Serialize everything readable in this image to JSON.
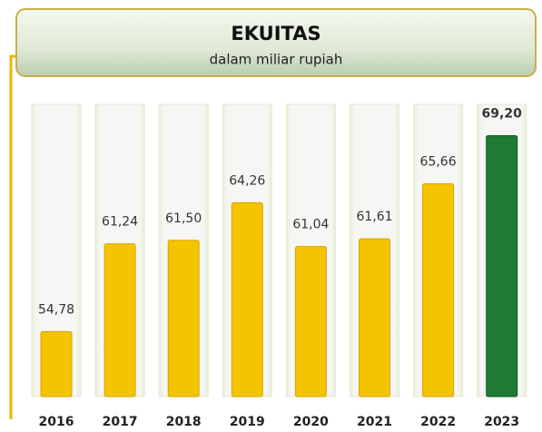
{
  "chart_data": {
    "type": "bar",
    "title": "EKUITAS",
    "subtitle": "dalam miliar rupiah",
    "categories": [
      "2016",
      "2017",
      "2018",
      "2019",
      "2020",
      "2021",
      "2022",
      "2023"
    ],
    "values": [
      54.78,
      61.24,
      61.5,
      64.26,
      61.04,
      61.61,
      65.66,
      69.2
    ],
    "value_labels": [
      "54,78",
      "61,24",
      "61,50",
      "64,26",
      "61,04",
      "61,61",
      "65,66",
      "69,20"
    ],
    "colors": [
      "#f5c400",
      "#f5c400",
      "#f5c400",
      "#f5c400",
      "#f5c400",
      "#f5c400",
      "#f5c400",
      "#1e7a34"
    ],
    "ylim": [
      50,
      71.5
    ]
  }
}
